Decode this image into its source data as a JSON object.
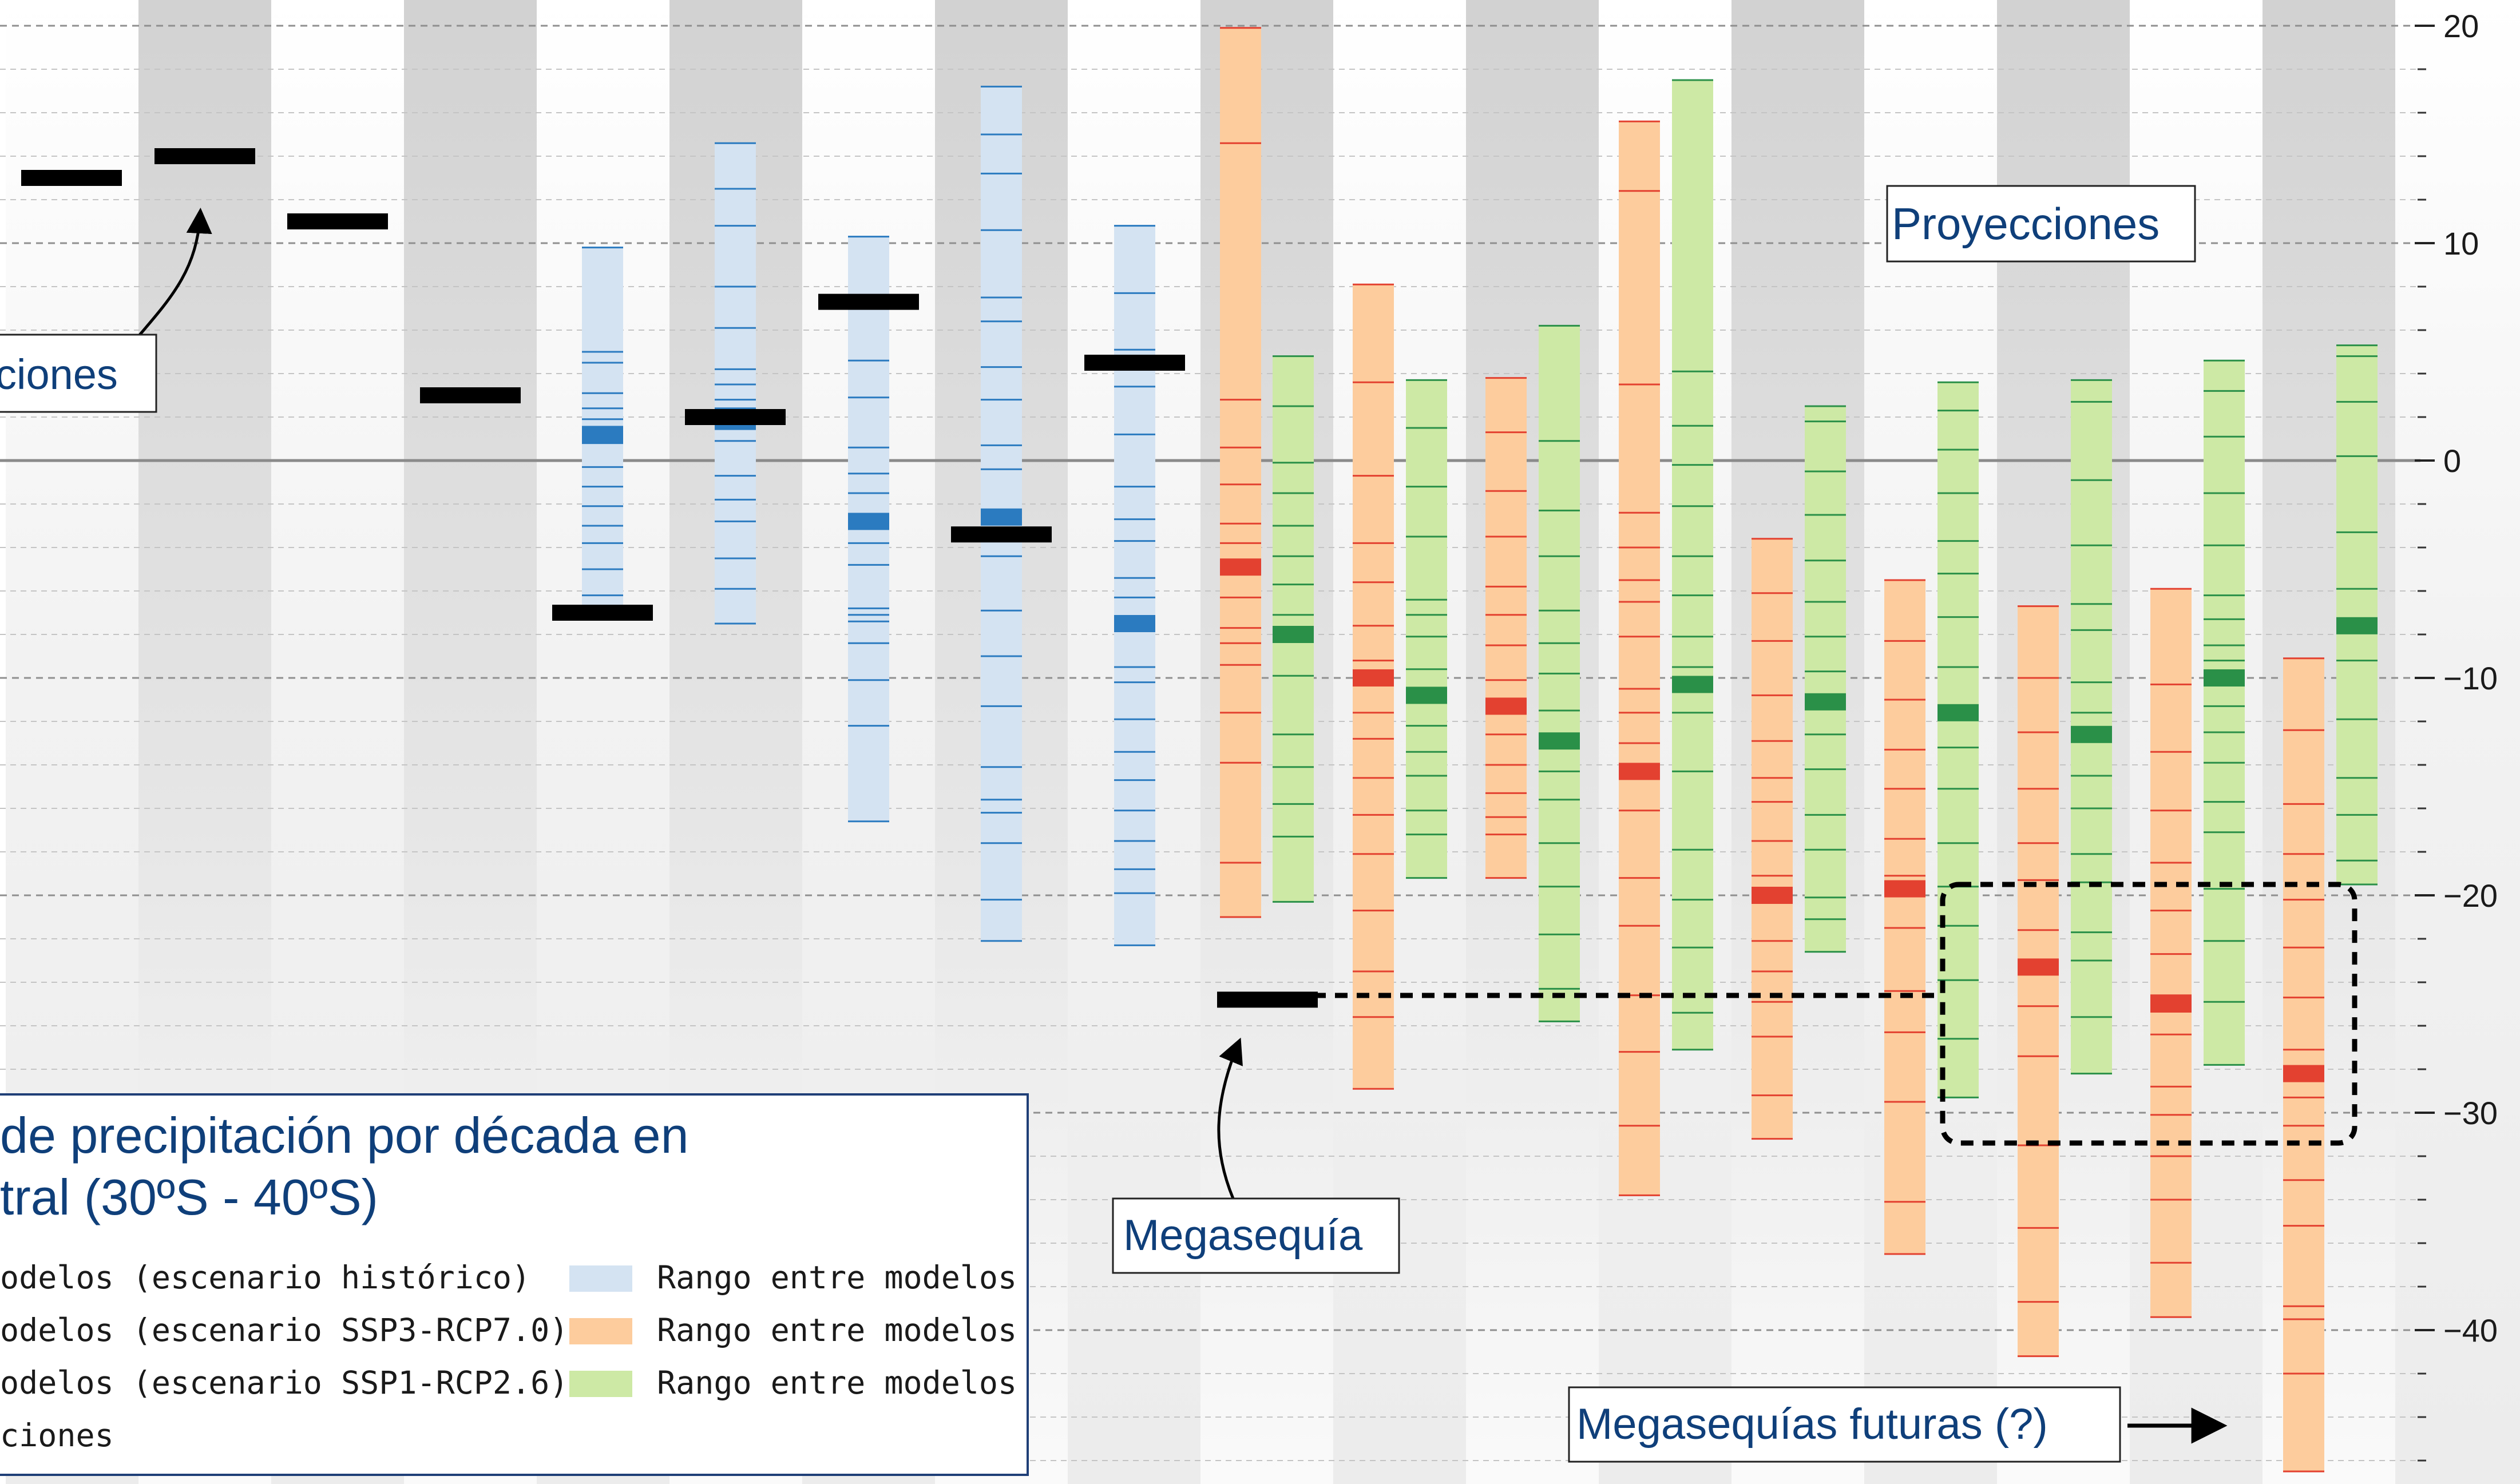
{
  "chart_data": {
    "type": "range-bar",
    "ylim": [
      -47,
      21
    ],
    "yticks": [
      {
        "value": 20,
        "label": "20"
      },
      {
        "value": 10,
        "label": "10"
      },
      {
        "value": 0,
        "label": "0"
      },
      {
        "value": -10,
        "label": "−10"
      },
      {
        "value": -20,
        "label": "−20"
      },
      {
        "value": -30,
        "label": "−30"
      },
      {
        "value": -40,
        "label": "−40"
      }
    ],
    "observations": [
      13,
      14,
      11,
      3,
      -7,
      2,
      7.3,
      -3.4,
      4.5,
      -24.8
    ],
    "historical": [
      {
        "min": -7.2,
        "max": 9.8,
        "mean": 1.2,
        "members": [
          9.8,
          5,
          4.5,
          3.1,
          2.4,
          1.9,
          0.8,
          -0.3,
          -1.2,
          -2.1,
          -3,
          -3.8,
          -5,
          -6.2,
          -7.2
        ]
      },
      {
        "min": -7.5,
        "max": 14.6,
        "mean": 1.8,
        "members": [
          14.6,
          12.5,
          10.8,
          8,
          6.1,
          4.2,
          3.5,
          2.8,
          2.4,
          0.9,
          -0.7,
          -1.8,
          -2.8,
          -4.5,
          -5.9,
          -7.5
        ]
      },
      {
        "min": -16.6,
        "max": 10.3,
        "mean": -2.8,
        "members": [
          10.3,
          7.5,
          4.6,
          2.9,
          0.6,
          -0.6,
          -1.5,
          -3.8,
          -4.8,
          -6.8,
          -7.1,
          -7.4,
          -8.4,
          -10.1,
          -12.2,
          -16.6
        ]
      },
      {
        "min": -22.1,
        "max": 17.2,
        "mean": -2.6,
        "members": [
          17.2,
          15,
          13.2,
          10.6,
          7.5,
          6.4,
          4.3,
          2.8,
          0.7,
          -0.4,
          -4.4,
          -6.9,
          -9,
          -11.3,
          -14.1,
          -15.6,
          -16.2,
          -17.6,
          -20.2,
          -22.1
        ]
      },
      {
        "min": -22.3,
        "max": 10.8,
        "mean": -7.5,
        "members": [
          10.8,
          7.7,
          5.1,
          3.4,
          1.2,
          -1.2,
          -2.7,
          -3.7,
          -5.4,
          -6.3,
          -9.5,
          -10.2,
          -11.9,
          -13.4,
          -14.7,
          -16.1,
          -17.5,
          -18.8,
          -19.9,
          -22.3
        ]
      }
    ],
    "projections_ssp3": [
      {
        "min": -21,
        "max": 19.9,
        "mean": -4.9,
        "members": [
          19.9,
          14.6,
          2.8,
          0.6,
          -1.1,
          -2.9,
          -3.8,
          -6.3,
          -7.7,
          -8.4,
          -9.4,
          -11.6,
          -13.9,
          -18.5,
          -21
        ]
      },
      {
        "min": -28.9,
        "max": 8.1,
        "mean": -10,
        "members": [
          8.1,
          3.6,
          -0.7,
          -3.8,
          -5.6,
          -7.6,
          -9.2,
          -11.6,
          -12.8,
          -14.6,
          -16.3,
          -18.1,
          -20.7,
          -23.5,
          -25.6,
          -28.9
        ]
      },
      {
        "min": -19.2,
        "max": 3.8,
        "mean": -11.3,
        "members": [
          3.8,
          1.3,
          -1.4,
          -3.5,
          -5.8,
          -7.1,
          -8.5,
          -10.1,
          -12.6,
          -14,
          -15.3,
          -16.4,
          -17.2,
          -19.2
        ]
      },
      {
        "min": -33.8,
        "max": 15.6,
        "mean": -14.3,
        "members": [
          15.6,
          12.4,
          3.5,
          -2.4,
          -4,
          -5.5,
          -6.5,
          -8.1,
          -10.5,
          -11.6,
          -13,
          -16.1,
          -19.2,
          -21.4,
          -24.6,
          -27.2,
          -30.6,
          -33.8
        ]
      },
      {
        "min": -31.2,
        "max": -3.6,
        "mean": -20,
        "members": [
          -3.6,
          -6.1,
          -8.3,
          -10.8,
          -12.9,
          -14.6,
          -15.7,
          -17.5,
          -19.1,
          -22.1,
          -23.5,
          -24.9,
          -26.5,
          -29.2,
          -31.2
        ]
      },
      {
        "min": -36.5,
        "max": -5.5,
        "mean": -19.7,
        "members": [
          -5.5,
          -8.3,
          -11,
          -13.3,
          -15.1,
          -17.4,
          -19.1,
          -21.5,
          -24.4,
          -26.3,
          -29.5,
          -34.1,
          -36.5
        ]
      },
      {
        "min": -41.2,
        "max": -6.7,
        "mean": -23.3,
        "members": [
          -6.7,
          -10,
          -12.5,
          -15.1,
          -17.6,
          -19.3,
          -21.6,
          -23,
          -25.1,
          -27.4,
          -31.5,
          -35.3,
          -38.7,
          -41.2
        ]
      },
      {
        "min": -39.4,
        "max": -5.9,
        "mean": -25,
        "members": [
          -5.9,
          -10.3,
          -13.4,
          -16.1,
          -18.5,
          -20.7,
          -22.7,
          -24.6,
          -26.4,
          -28.8,
          -30.1,
          -32,
          -34,
          -36.9,
          -39.4
        ]
      },
      {
        "min": -46.5,
        "max": -9.1,
        "mean": -28.2,
        "members": [
          -9.1,
          -12.4,
          -15.8,
          -18.1,
          -20.2,
          -22.4,
          -24.7,
          -27.1,
          -29.3,
          -30.6,
          -33.1,
          -35.2,
          -38.9,
          -39.5,
          -42,
          -46.5
        ]
      }
    ],
    "projections_ssp1": [
      {
        "min": -20.3,
        "max": 4.8,
        "mean": -8,
        "members": [
          4.8,
          2.5,
          -0.1,
          -1.5,
          -3,
          -4.4,
          -5.7,
          -7.1,
          -9.9,
          -12.6,
          -14.1,
          -15.8,
          -17.3,
          -20.3
        ]
      },
      {
        "min": -19.2,
        "max": 3.7,
        "mean": -10.8,
        "members": [
          3.7,
          1.5,
          -1.2,
          -3.5,
          -6.4,
          -7.1,
          -8.1,
          -9.6,
          -12.2,
          -13.4,
          -14.5,
          -16.1,
          -17.2,
          -19.2
        ]
      },
      {
        "min": -25.8,
        "max": 6.2,
        "mean": -12.9,
        "members": [
          6.2,
          0.9,
          -2.3,
          -4.4,
          -6.9,
          -8.4,
          -9.8,
          -11.5,
          -14.3,
          -15.6,
          -17.6,
          -19.6,
          -21.8,
          -24.3,
          -25.8
        ]
      },
      {
        "min": -27.1,
        "max": 17.5,
        "mean": -10.3,
        "members": [
          17.5,
          4.1,
          1.6,
          -0.2,
          -2.1,
          -4.4,
          -6.2,
          -8.1,
          -9.5,
          -11.6,
          -14.3,
          -17.9,
          -20.2,
          -22.4,
          -25.4,
          -27.1
        ]
      },
      {
        "min": -22.6,
        "max": 2.5,
        "mean": -11.1,
        "members": [
          2.5,
          1.8,
          -0.5,
          -2.5,
          -4.6,
          -6.5,
          -8.1,
          -9.7,
          -12.6,
          -14.2,
          -16.3,
          -17.9,
          -20.1,
          -21.1,
          -22.6
        ]
      },
      {
        "min": -29.3,
        "max": 3.6,
        "mean": -11.6,
        "members": [
          3.6,
          2.3,
          0.5,
          -1.5,
          -3.7,
          -5.2,
          -7.2,
          -9.5,
          -13.2,
          -15.1,
          -17.6,
          -19.6,
          -21.4,
          -23.9,
          -26.6,
          -29.3
        ]
      },
      {
        "min": -28.2,
        "max": 3.7,
        "mean": -12.6,
        "members": [
          3.7,
          2.7,
          -0.9,
          -3.9,
          -6.6,
          -7.8,
          -10.2,
          -11.6,
          -14.5,
          -16,
          -18.1,
          -19.4,
          -21.7,
          -23,
          -25.6,
          -28.2
        ]
      },
      {
        "min": -27.8,
        "max": 4.6,
        "mean": -10,
        "members": [
          4.6,
          3.2,
          1.1,
          -1.5,
          -3.9,
          -6.2,
          -7.3,
          -8.5,
          -9.2,
          -11.3,
          -12.5,
          -13.9,
          -15.7,
          -17.1,
          -19.7,
          -22.1,
          -24.9,
          -27.8
        ]
      },
      {
        "min": -19.5,
        "max": 5.3,
        "mean": -7.6,
        "members": [
          5.3,
          4.8,
          2.7,
          0.2,
          -3.3,
          -5.9,
          -9.2,
          -11.9,
          -14.6,
          -16.3,
          -18.4,
          -19.5
        ]
      }
    ]
  },
  "annotations": {
    "observaciones": "ciones",
    "proyecciones": "Proyecciones",
    "megasequia": "Megasequía",
    "megasequias_futuras": "Megasequías futuras (?)"
  },
  "legend": {
    "title_line1": "de precipitación por década en",
    "title_line2": "tral (30ºS - 40ºS)",
    "items_left": [
      "odelos (escenario histórico)",
      "odelos (escenario SSP3-RCP7.0)",
      "odelos (escenario SSP1-RCP2.6)",
      "ciones"
    ],
    "items_right": [
      "Rango entre modelos",
      "Rango entre modelos",
      "Rango entre modelos"
    ]
  },
  "colors": {
    "observation": "#000000",
    "hist_fill": "#d4e3f2",
    "hist_line": "#2b7bc0",
    "ssp3_fill": "#fdcc9d",
    "ssp3_line": "#e34130",
    "ssp1_fill": "#cde9a5",
    "ssp1_line": "#2a9048",
    "text_blue": "#0f3f7a"
  }
}
